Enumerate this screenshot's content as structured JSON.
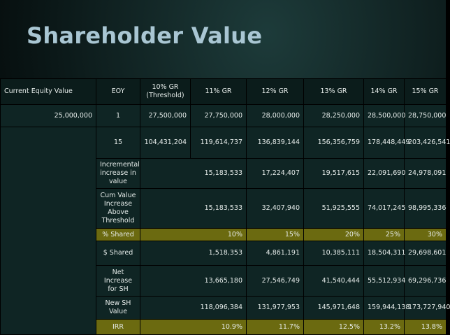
{
  "title": "Shareholder Value",
  "table": {
    "header": [
      "Current Equity Value",
      "EOY",
      "10% GR (Threshold)",
      "11% GR",
      "12% GR",
      "13% GR",
      "14% GR",
      "15% GR"
    ],
    "rows": [
      [
        "25,000,000",
        "1",
        "27,500,000",
        "27,750,000",
        "28,000,000",
        "28,250,000",
        "28,500,000",
        "28,750,000"
      ],
      [
        "15",
        "104,431,204",
        "119,614,737",
        "136,839,144",
        "156,356,759",
        "178,448,449",
        "203,426,541"
      ],
      [
        "Incremental increase in value",
        "15,183,533",
        "17,224,407",
        "19,517,615",
        "22,091,690",
        "24,978,091"
      ],
      [
        "Cum Value Increase Above Threshold",
        "15,183,533",
        "32,407,940",
        "51,925,555",
        "74,017,245",
        "98,995,336"
      ],
      [
        "% Shared",
        "10%",
        "15%",
        "20%",
        "25%",
        "30%"
      ],
      [
        "$ Shared",
        "1,518,353",
        "4,861,191",
        "10,385,111",
        "18,504,311",
        "29,698,601"
      ],
      [
        "Net Increase for SH",
        "13,665,180",
        "27,546,749",
        "41,540,444",
        "55,512,934",
        "69,296,736"
      ],
      [
        "New SH Value",
        "118,096,384",
        "131,977,953",
        "145,971,648",
        "159,944,138",
        "173,727,940"
      ],
      [
        "IRR",
        "10.9%",
        "11.7%",
        "12.5%",
        "13.2%",
        "13.8%"
      ]
    ]
  }
}
